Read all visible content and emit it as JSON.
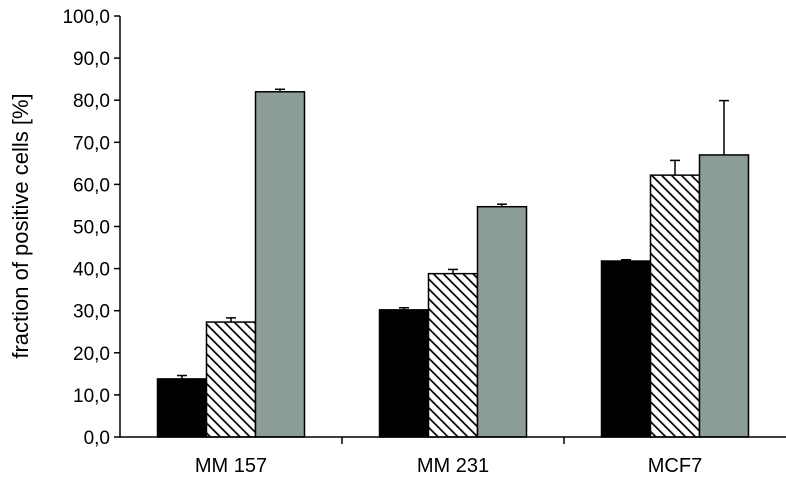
{
  "chart_data": {
    "type": "bar",
    "title": "",
    "xlabel": "",
    "ylabel": "fraction of positive cells [%]",
    "ylim": [
      0,
      100
    ],
    "yticks": [
      "0,0",
      "10,0",
      "20,0",
      "30,0",
      "40,0",
      "50,0",
      "60,0",
      "70,0",
      "80,0",
      "90,0",
      "100,0"
    ],
    "categories": [
      "MM 157",
      "MM 231",
      "MCF7"
    ],
    "grid": false,
    "legend": "none",
    "series": [
      {
        "fill": "#000000",
        "pattern": "solid",
        "values": [
          13.8,
          30.2,
          41.8
        ],
        "errors": [
          0.8,
          0.5,
          0.3
        ]
      },
      {
        "fill": "#ffffff",
        "pattern": "hatch",
        "values": [
          27.3,
          38.8,
          62.2
        ],
        "errors": [
          1.0,
          1.0,
          3.5
        ]
      },
      {
        "fill": "#8c9c97",
        "pattern": "solid",
        "values": [
          82.0,
          54.7,
          67.0
        ],
        "errors": [
          0.6,
          0.6,
          12.9
        ]
      }
    ]
  }
}
